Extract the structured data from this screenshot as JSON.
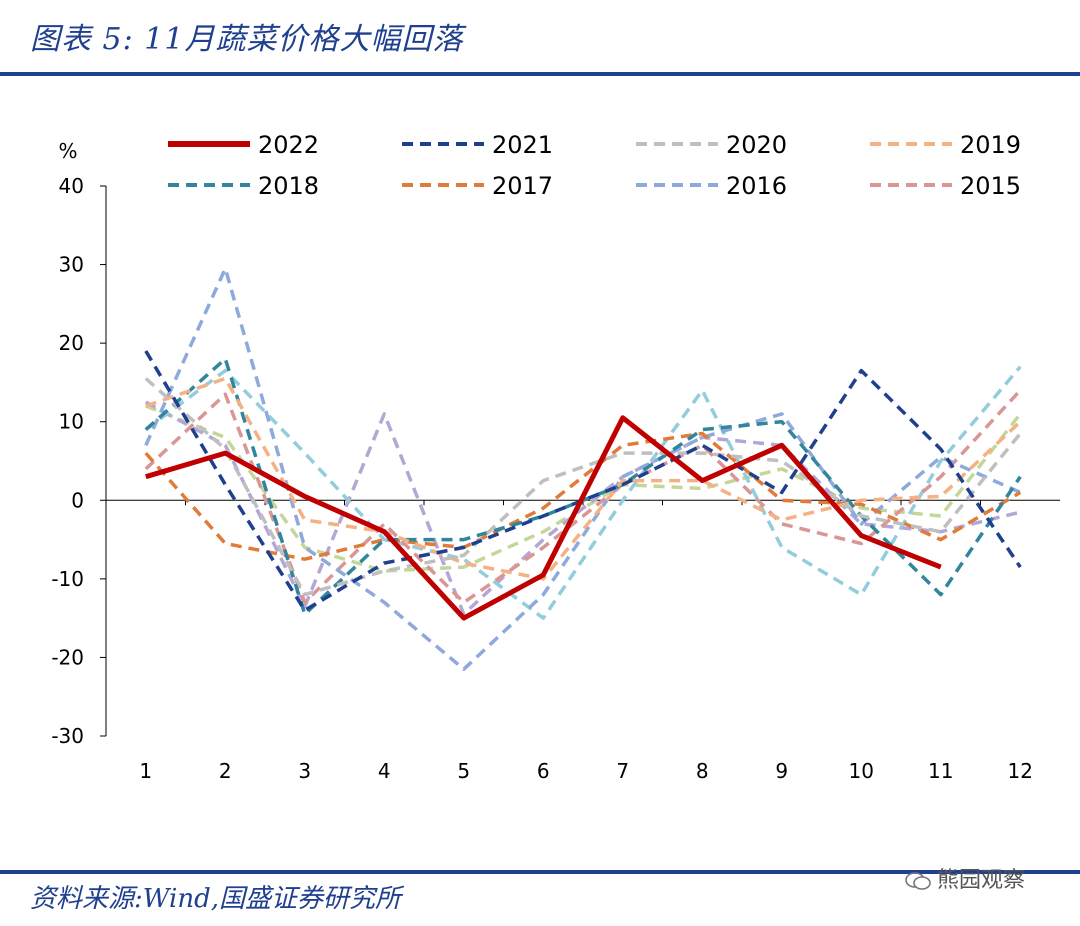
{
  "header": {
    "title": "图表 5:   11月蔬菜价格大幅回落"
  },
  "footer": {
    "source": "资料来源:Wind,国盛证券研究所",
    "watermark": "熊园观察"
  },
  "chart_data": {
    "type": "line",
    "ylabel": "%",
    "ylim": [
      -30,
      40
    ],
    "yticks": [
      40,
      30,
      20,
      10,
      0,
      -10,
      -20,
      -30
    ],
    "categories": [
      "1",
      "2",
      "3",
      "4",
      "5",
      "6",
      "7",
      "8",
      "9",
      "10",
      "11",
      "12"
    ],
    "series": [
      {
        "name": "2022",
        "color": "#c00000",
        "dashed": false,
        "values": [
          3,
          6,
          0.5,
          -4,
          -15,
          -9.5,
          10.5,
          2.5,
          7,
          -4.5,
          -8.5,
          null
        ]
      },
      {
        "name": "2021",
        "color": "#1f3f8f",
        "dashed": true,
        "values": [
          19,
          2,
          -14,
          -8,
          -6,
          -2,
          2,
          7,
          1,
          16.5,
          6.5,
          -8.5
        ]
      },
      {
        "name": "2020",
        "color": "#bfbfbf",
        "dashed": true,
        "values": [
          15.5,
          6.5,
          -12,
          -9,
          -7,
          2.5,
          6,
          6,
          5,
          -2,
          -4,
          8.5
        ]
      },
      {
        "name": "2019",
        "color": "#f4b183",
        "dashed": true,
        "values": [
          12,
          15.5,
          -2.5,
          -4,
          -8,
          -10,
          2.5,
          2.5,
          -2.5,
          0,
          0.5,
          10
        ]
      },
      {
        "name": "2018",
        "color": "#31859c",
        "dashed": true,
        "values": [
          9,
          18,
          -14.5,
          -5,
          -5,
          -2,
          2,
          9,
          10,
          -2,
          -12,
          3
        ]
      },
      {
        "name": "2017",
        "color": "#e07b39",
        "dashed": true,
        "values": [
          6,
          -5.5,
          -7.5,
          -5,
          -6,
          -1,
          7,
          8.5,
          0,
          -0.5,
          -5,
          1
        ]
      },
      {
        "name": "2016",
        "color": "#8ea9db",
        "dashed": true,
        "values": [
          7,
          29.5,
          -6,
          -13,
          -21.5,
          -12,
          3,
          8,
          11,
          -3,
          5.5,
          1
        ]
      },
      {
        "name": "2015",
        "color": "#d99694",
        "dashed": true,
        "values": [
          4,
          13.5,
          -13,
          -3,
          -13,
          -6,
          2,
          7,
          -3,
          -5.5,
          3,
          14
        ]
      },
      {
        "name": "",
        "color": "#92cddc",
        "dashed": true,
        "values": [
          9,
          16.5,
          6,
          -5,
          -7.5,
          -15,
          0,
          14,
          -6,
          -12,
          5,
          17
        ]
      },
      {
        "name": "",
        "color": "#b4a7d6",
        "dashed": true,
        "values": [
          12.5,
          7,
          -13.5,
          11,
          -14.5,
          -5,
          3,
          8,
          7,
          -3,
          -4,
          -1.5
        ]
      },
      {
        "name": "",
        "color": "#c4d79b",
        "dashed": true,
        "values": [
          12,
          8,
          -6,
          -9,
          -8.5,
          -4,
          2,
          1.5,
          4,
          -1,
          -2,
          11
        ]
      }
    ]
  }
}
